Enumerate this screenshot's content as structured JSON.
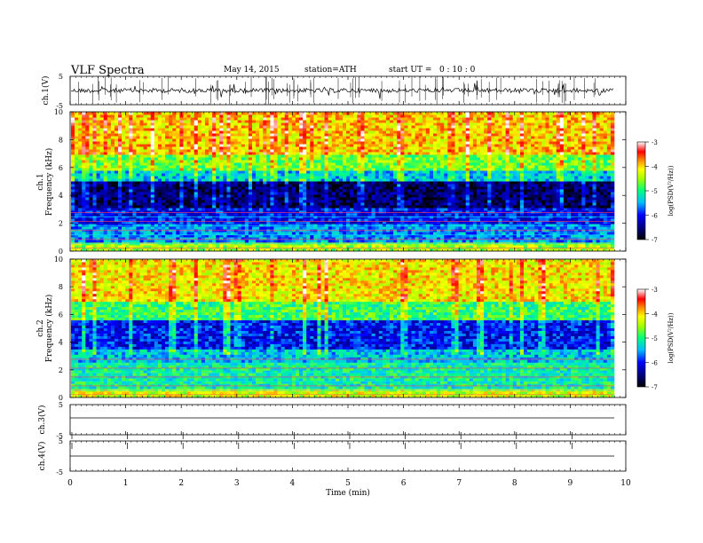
{
  "header": {
    "title": "VLF Spectra",
    "date": "May 14, 2015",
    "station": "station=ATH",
    "start_ut": "start UT =   0 : 10 : 0"
  },
  "colorbar": {
    "label": "log(PSD(V²/Hz))",
    "ticks": [
      "-3",
      "-4",
      "-5",
      "-6",
      "-7"
    ]
  },
  "chart_data": [
    {
      "type": "line",
      "ylabel": "ch.1(V)",
      "ylim": [
        -5,
        5
      ],
      "yticks": [
        "5",
        "-5"
      ],
      "description_series": "broadband waveform, values near -0.3 V with impulsive spikes"
    },
    {
      "type": "heatmap",
      "ylabel": "ch.1",
      "ylabel2": "Frequency (kHz)",
      "ylim": [
        0,
        10
      ],
      "yticks": [
        "0",
        "2",
        "4",
        "6",
        "8",
        "10"
      ],
      "zlim": [
        -7,
        -3
      ]
    },
    {
      "type": "heatmap",
      "ylabel": "ch.2",
      "ylabel2": "Frequency (kHz)",
      "ylim": [
        0,
        10
      ],
      "yticks": [
        "0",
        "2",
        "4",
        "6",
        "8",
        "10"
      ],
      "zlim": [
        -7,
        -3
      ]
    },
    {
      "type": "line",
      "ylabel": "ch.3(V)",
      "ylim": [
        -5,
        5
      ],
      "yticks": [
        "5",
        "-5"
      ]
    },
    {
      "type": "line",
      "ylabel": "ch.4(V)",
      "ylim": [
        -5,
        5
      ],
      "yticks": [
        "5",
        "-5"
      ]
    }
  ],
  "xaxis": {
    "xlabel": "Time (min)",
    "xlim": [
      0,
      10
    ],
    "ticks": [
      "0",
      "1",
      "2",
      "3",
      "4",
      "5",
      "6",
      "7",
      "8",
      "9",
      "10"
    ]
  }
}
